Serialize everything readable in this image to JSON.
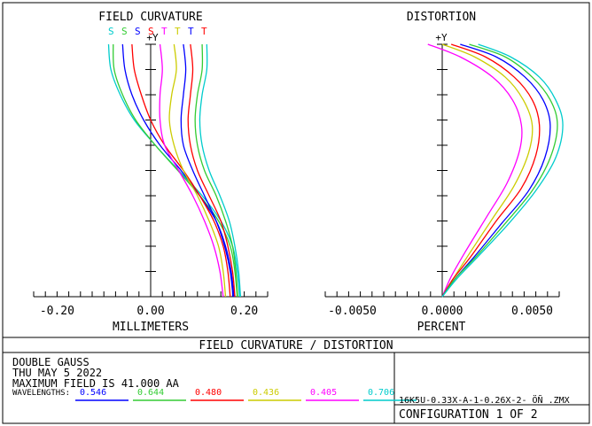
{
  "chart_data": [
    {
      "type": "line",
      "title": "FIELD CURVATURE",
      "xlabel": "MILLIMETERS",
      "ylabel": "+Y",
      "xlim": [
        -0.25,
        0.25
      ],
      "ylim": [
        0,
        1
      ],
      "x_ticks": [
        "-0.20",
        "0.00",
        "0.20"
      ],
      "x_tick_values": [
        -0.2,
        0.0,
        0.2
      ],
      "legend": [
        "S",
        "S",
        "S",
        "S",
        "T",
        "T",
        "T",
        "T"
      ],
      "series": [
        {
          "color": "#00CCCC",
          "points": [
            [
              -0.09,
              1.0
            ],
            [
              -0.085,
              0.9
            ],
            [
              -0.065,
              0.8
            ],
            [
              -0.035,
              0.7
            ],
            [
              0.01,
              0.6
            ],
            [
              0.06,
              0.5
            ],
            [
              0.11,
              0.4
            ],
            [
              0.15,
              0.3
            ],
            [
              0.175,
              0.2
            ],
            [
              0.185,
              0.1
            ],
            [
              0.19,
              0.0
            ]
          ]
        },
        {
          "color": "#33CC33",
          "points": [
            [
              -0.08,
              1.0
            ],
            [
              -0.078,
              0.9
            ],
            [
              -0.06,
              0.8
            ],
            [
              -0.032,
              0.7
            ],
            [
              0.01,
              0.6
            ],
            [
              0.058,
              0.5
            ],
            [
              0.105,
              0.4
            ],
            [
              0.145,
              0.3
            ],
            [
              0.17,
              0.2
            ],
            [
              0.18,
              0.1
            ],
            [
              0.185,
              0.0
            ]
          ]
        },
        {
          "color": "#0000FF",
          "points": [
            [
              -0.06,
              1.0
            ],
            [
              -0.055,
              0.9
            ],
            [
              -0.04,
              0.8
            ],
            [
              -0.015,
              0.7
            ],
            [
              0.02,
              0.6
            ],
            [
              0.065,
              0.5
            ],
            [
              0.105,
              0.4
            ],
            [
              0.14,
              0.3
            ],
            [
              0.16,
              0.2
            ],
            [
              0.172,
              0.1
            ],
            [
              0.178,
              0.0
            ]
          ]
        },
        {
          "color": "#FF0000",
          "points": [
            [
              -0.04,
              1.0
            ],
            [
              -0.035,
              0.9
            ],
            [
              -0.02,
              0.8
            ],
            [
              0.0,
              0.7
            ],
            [
              0.03,
              0.6
            ],
            [
              0.07,
              0.5
            ],
            [
              0.105,
              0.4
            ],
            [
              0.135,
              0.3
            ],
            [
              0.155,
              0.2
            ],
            [
              0.165,
              0.1
            ],
            [
              0.17,
              0.0
            ]
          ]
        },
        {
          "color": "#FF00FF",
          "points": [
            [
              0.02,
              1.0
            ],
            [
              0.025,
              0.9
            ],
            [
              0.02,
              0.8
            ],
            [
              0.02,
              0.7
            ],
            [
              0.03,
              0.6
            ],
            [
              0.06,
              0.5
            ],
            [
              0.09,
              0.4
            ],
            [
              0.115,
              0.3
            ],
            [
              0.135,
              0.2
            ],
            [
              0.148,
              0.1
            ],
            [
              0.155,
              0.0
            ]
          ]
        },
        {
          "color": "#CCCC00",
          "points": [
            [
              0.05,
              1.0
            ],
            [
              0.055,
              0.9
            ],
            [
              0.045,
              0.8
            ],
            [
              0.04,
              0.7
            ],
            [
              0.05,
              0.6
            ],
            [
              0.07,
              0.5
            ],
            [
              0.1,
              0.4
            ],
            [
              0.125,
              0.3
            ],
            [
              0.145,
              0.2
            ],
            [
              0.155,
              0.1
            ],
            [
              0.16,
              0.0
            ]
          ]
        },
        {
          "color": "#0000FF",
          "points": [
            [
              0.07,
              1.0
            ],
            [
              0.075,
              0.9
            ],
            [
              0.07,
              0.8
            ],
            [
              0.065,
              0.7
            ],
            [
              0.07,
              0.6
            ],
            [
              0.09,
              0.5
            ],
            [
              0.115,
              0.4
            ],
            [
              0.14,
              0.3
            ],
            [
              0.158,
              0.2
            ],
            [
              0.17,
              0.1
            ],
            [
              0.176,
              0.0
            ]
          ]
        },
        {
          "color": "#FF0000",
          "points": [
            [
              0.085,
              1.0
            ],
            [
              0.09,
              0.9
            ],
            [
              0.085,
              0.8
            ],
            [
              0.08,
              0.7
            ],
            [
              0.085,
              0.6
            ],
            [
              0.1,
              0.5
            ],
            [
              0.125,
              0.4
            ],
            [
              0.15,
              0.3
            ],
            [
              0.165,
              0.2
            ],
            [
              0.175,
              0.1
            ],
            [
              0.18,
              0.0
            ]
          ]
        },
        {
          "color": "#33CC33",
          "points": [
            [
              0.11,
              1.0
            ],
            [
              0.11,
              0.9
            ],
            [
              0.1,
              0.8
            ],
            [
              0.095,
              0.7
            ],
            [
              0.1,
              0.6
            ],
            [
              0.115,
              0.5
            ],
            [
              0.14,
              0.4
            ],
            [
              0.16,
              0.3
            ],
            [
              0.175,
              0.2
            ],
            [
              0.182,
              0.1
            ],
            [
              0.186,
              0.0
            ]
          ]
        },
        {
          "color": "#00CCCC",
          "points": [
            [
              0.12,
              1.0
            ],
            [
              0.12,
              0.9
            ],
            [
              0.11,
              0.8
            ],
            [
              0.105,
              0.7
            ],
            [
              0.11,
              0.6
            ],
            [
              0.125,
              0.5
            ],
            [
              0.148,
              0.4
            ],
            [
              0.168,
              0.3
            ],
            [
              0.18,
              0.2
            ],
            [
              0.188,
              0.1
            ],
            [
              0.192,
              0.0
            ]
          ]
        }
      ]
    },
    {
      "type": "line",
      "title": "DISTORTION",
      "xlabel": "PERCENT",
      "ylabel": "+Y",
      "xlim": [
        -0.0065,
        0.0065
      ],
      "ylim": [
        0,
        1
      ],
      "x_ticks": [
        "-0.0050",
        "0.0000",
        "0.0050"
      ],
      "x_tick_values": [
        -0.005,
        0.0,
        0.005
      ],
      "series": [
        {
          "color": "#FF00FF",
          "points": [
            [
              -0.0008,
              1.0
            ],
            [
              0.001,
              0.95
            ],
            [
              0.0028,
              0.87
            ],
            [
              0.0039,
              0.78
            ],
            [
              0.0044,
              0.68
            ],
            [
              0.0043,
              0.58
            ],
            [
              0.0036,
              0.45
            ],
            [
              0.0025,
              0.32
            ],
            [
              0.0013,
              0.18
            ],
            [
              0.0005,
              0.08
            ],
            [
              0.0,
              0.0
            ]
          ]
        },
        {
          "color": "#CCCC00",
          "points": [
            [
              0.0,
              1.0
            ],
            [
              0.0018,
              0.95
            ],
            [
              0.0035,
              0.87
            ],
            [
              0.0045,
              0.78
            ],
            [
              0.005,
              0.68
            ],
            [
              0.0048,
              0.57
            ],
            [
              0.004,
              0.44
            ],
            [
              0.0028,
              0.31
            ],
            [
              0.0015,
              0.17
            ],
            [
              0.0006,
              0.07
            ],
            [
              0.0,
              0.0
            ]
          ]
        },
        {
          "color": "#FF0000",
          "points": [
            [
              0.0005,
              1.0
            ],
            [
              0.0024,
              0.95
            ],
            [
              0.004,
              0.87
            ],
            [
              0.005,
              0.78
            ],
            [
              0.0054,
              0.68
            ],
            [
              0.0052,
              0.56
            ],
            [
              0.0044,
              0.43
            ],
            [
              0.003,
              0.3
            ],
            [
              0.0016,
              0.16
            ],
            [
              0.0006,
              0.07
            ],
            [
              0.0,
              0.0
            ]
          ]
        },
        {
          "color": "#0000FF",
          "points": [
            [
              0.001,
              1.0
            ],
            [
              0.003,
              0.95
            ],
            [
              0.0046,
              0.87
            ],
            [
              0.0056,
              0.78
            ],
            [
              0.006,
              0.68
            ],
            [
              0.0057,
              0.55
            ],
            [
              0.0048,
              0.42
            ],
            [
              0.0033,
              0.29
            ],
            [
              0.0018,
              0.16
            ],
            [
              0.0007,
              0.07
            ],
            [
              0.0,
              0.0
            ]
          ]
        },
        {
          "color": "#33CC33",
          "points": [
            [
              0.0015,
              1.0
            ],
            [
              0.0035,
              0.95
            ],
            [
              0.005,
              0.87
            ],
            [
              0.006,
              0.78
            ],
            [
              0.0064,
              0.68
            ],
            [
              0.006,
              0.55
            ],
            [
              0.005,
              0.42
            ],
            [
              0.0035,
              0.29
            ],
            [
              0.0019,
              0.16
            ],
            [
              0.0007,
              0.07
            ],
            [
              0.0,
              0.0
            ]
          ]
        },
        {
          "color": "#00CCCC",
          "points": [
            [
              0.002,
              1.0
            ],
            [
              0.0038,
              0.95
            ],
            [
              0.0054,
              0.87
            ],
            [
              0.0063,
              0.78
            ],
            [
              0.0067,
              0.68
            ],
            [
              0.0063,
              0.55
            ],
            [
              0.0052,
              0.42
            ],
            [
              0.0037,
              0.29
            ],
            [
              0.002,
              0.16
            ],
            [
              0.0008,
              0.07
            ],
            [
              0.0,
              0.0
            ]
          ]
        }
      ]
    }
  ],
  "footer": {
    "title": "FIELD CURVATURE / DISTORTION",
    "line1": "DOUBLE GAUSS",
    "line2": "THU MAY 5 2022",
    "line3": "MAXIMUM FIELD IS 41.000  AA",
    "wavelengths_label": "WAVELENGTHS:",
    "wavelengths": [
      {
        "value": "0.546",
        "color": "#0000FF"
      },
      {
        "value": "0.644",
        "color": "#33CC33"
      },
      {
        "value": "0.480",
        "color": "#FF0000"
      },
      {
        "value": "0.436",
        "color": "#CCCC00"
      },
      {
        "value": "0.405",
        "color": "#FF00FF"
      },
      {
        "value": "0.706",
        "color": "#00CCCC"
      }
    ],
    "filename": "16K5U-0.33X-A-1-0.26X-2- ÖÑ    .ZMX",
    "configuration": "CONFIGURATION  1  OF  2"
  },
  "legend_colors": [
    "#00CCCC",
    "#33CC33",
    "#0000FF",
    "#FF0000",
    "#FF00FF",
    "#CCCC00",
    "#0000FF",
    "#FF0000",
    "#33CC33",
    "#00CCCC"
  ]
}
